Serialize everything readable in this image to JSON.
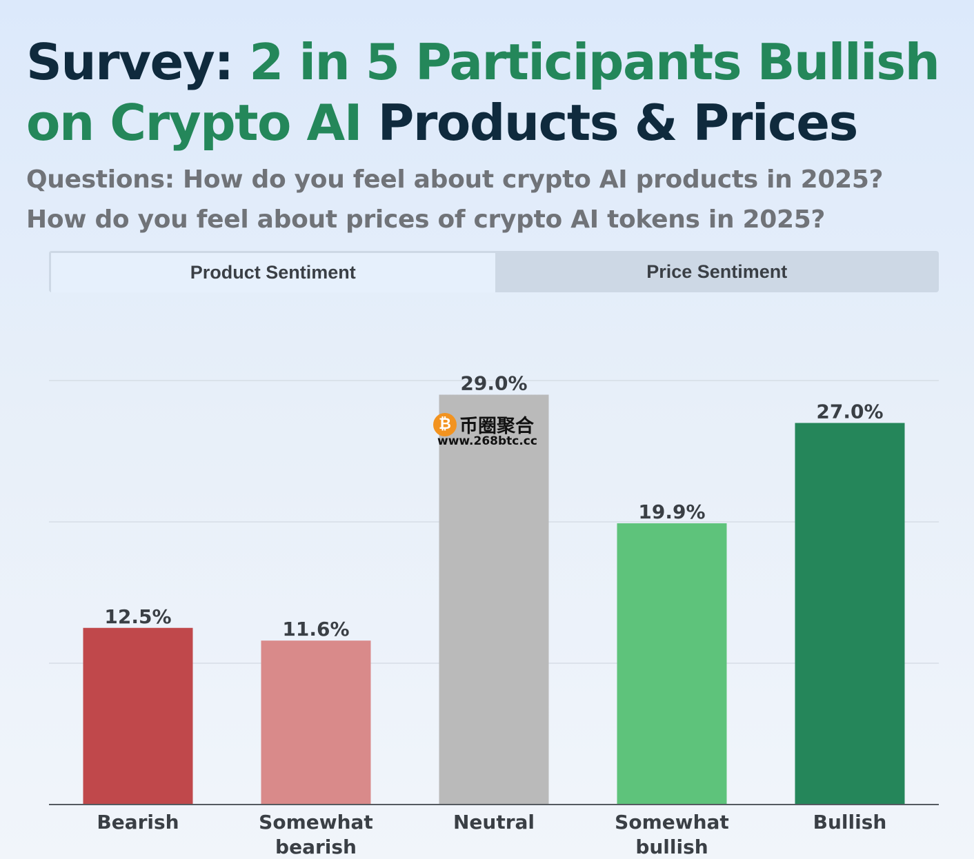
{
  "title": {
    "part1": "Survey: ",
    "part2": "2 in 5 Participants Bullish",
    "part3": "on Crypto AI",
    "part4": " Products & Prices"
  },
  "subtitle": {
    "line1": "Questions: How do you feel about crypto AI products in 2025?",
    "line2": "How do you feel about prices of crypto AI tokens in 2025?"
  },
  "tabs": [
    {
      "label": "Product Sentiment",
      "active": true
    },
    {
      "label": "Price Sentiment",
      "active": false
    }
  ],
  "watermark": {
    "name": "币圈聚合",
    "url": "www.268btc.cc",
    "coin_symbol": "₿"
  },
  "chart_data": {
    "type": "bar",
    "categories": [
      [
        "Bearish"
      ],
      [
        "Somewhat",
        "bearish"
      ],
      [
        "Neutral"
      ],
      [
        "Somewhat",
        "bullish"
      ],
      [
        "Bullish"
      ]
    ],
    "values": [
      12.5,
      11.6,
      29.0,
      19.9,
      27.0
    ],
    "data_labels": [
      "12.5%",
      "11.6%",
      "29.0%",
      "19.9%",
      "27.0%"
    ],
    "colors": [
      "#c0484b",
      "#d98a8a",
      "#bababa",
      "#5ec37b",
      "#25865a"
    ],
    "ylim": [
      0,
      30
    ],
    "gridlines": [
      10,
      20,
      30
    ],
    "xlabel": "",
    "ylabel": ""
  }
}
